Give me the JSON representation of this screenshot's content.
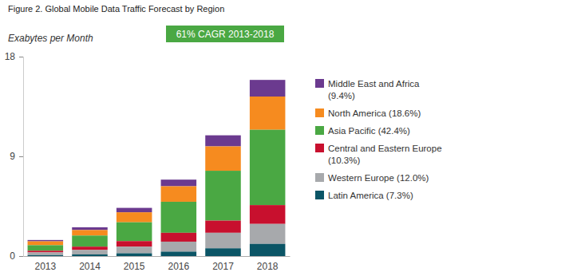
{
  "chart_data": {
    "type": "bar",
    "title": "Figure 2. Global Mobile Data Traffic Forecast by Region",
    "ylabel": "Exabytes per Month",
    "annotation": "61% CAGR 2013-2018",
    "categories": [
      "2013",
      "2014",
      "2015",
      "2016",
      "2017",
      "2018"
    ],
    "series": [
      {
        "name": "Middle East and Africa (9.4%)",
        "color": "#6b3a8f",
        "values": [
          0.12,
          0.25,
          0.4,
          0.6,
          1.0,
          1.5
        ]
      },
      {
        "name": "North America (18.6%)",
        "color": "#f68b1f",
        "values": [
          0.35,
          0.5,
          0.9,
          1.4,
          2.2,
          3.0
        ]
      },
      {
        "name": "Asia Pacific (42.4%)",
        "color": "#4aa843",
        "values": [
          0.5,
          1.0,
          1.7,
          2.8,
          4.5,
          6.8
        ]
      },
      {
        "name": "Central and Eastern Europe (10.3%)",
        "color": "#c8102e",
        "values": [
          0.15,
          0.3,
          0.5,
          0.8,
          1.1,
          1.7
        ]
      },
      {
        "name": "Western Europe (12.0%)",
        "color": "#a7a9ac",
        "values": [
          0.25,
          0.4,
          0.6,
          0.9,
          1.4,
          1.8
        ]
      },
      {
        "name": "Latin America (7.3%)",
        "color": "#0b5566",
        "values": [
          0.08,
          0.15,
          0.25,
          0.4,
          0.7,
          1.1
        ]
      }
    ],
    "ylim": [
      0,
      18
    ],
    "yticks": [
      0,
      9,
      18
    ],
    "stacked": true,
    "grid": false,
    "legend": "right"
  }
}
